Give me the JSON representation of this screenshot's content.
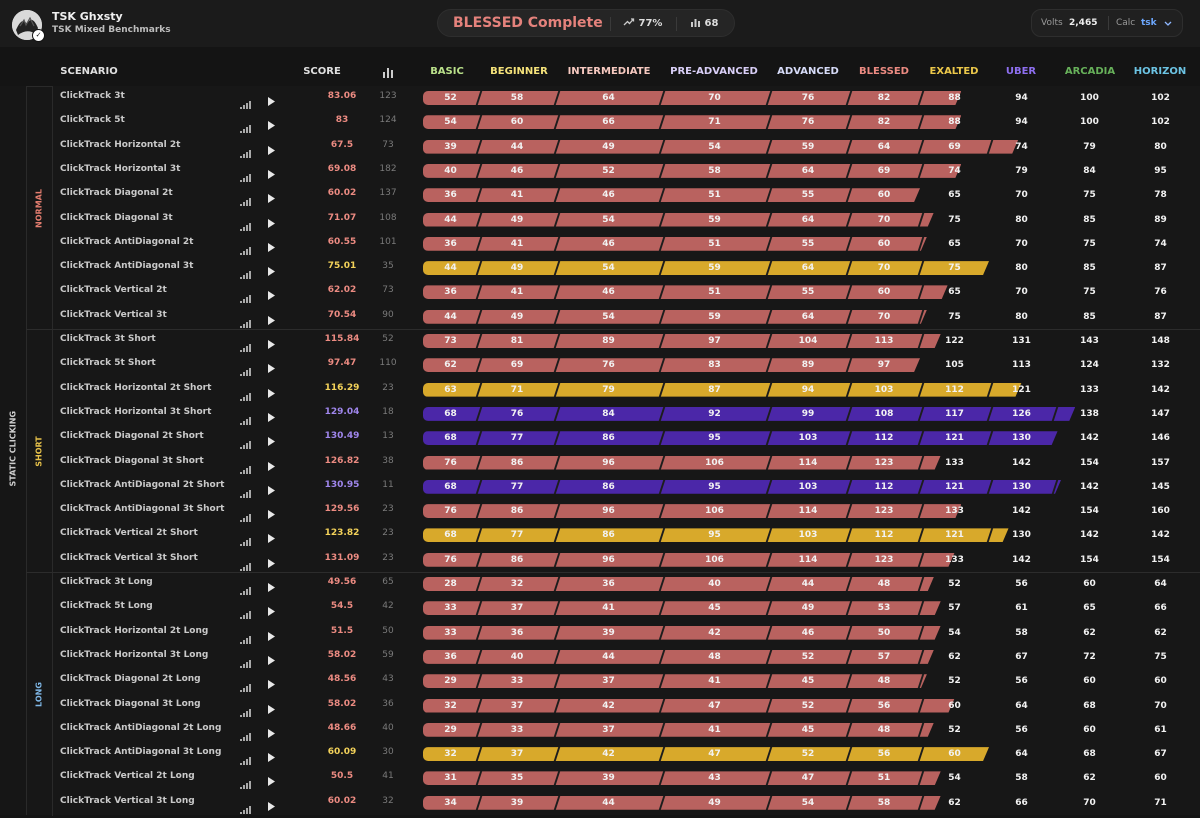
{
  "header": {
    "user_name": "TSK Ghxsty",
    "playlist_name": "TSK Mixed Benchmarks",
    "rank_title": "BLESSED Complete",
    "progress": "77%",
    "count": "68",
    "volts_label": "Volts",
    "volts_value": "2,465",
    "calc_label": "Calc",
    "calc_value": "tsk"
  },
  "columns": {
    "scenario": "SCENARIO",
    "score": "SCORE",
    "ranks": [
      {
        "label": "BASIC",
        "color": "#b9e08a"
      },
      {
        "label": "BEGINNER",
        "color": "#f5e27a"
      },
      {
        "label": "INTERMEDIATE",
        "color": "#f6c9c0"
      },
      {
        "label": "PRE-ADVANCED",
        "color": "#d9cff7"
      },
      {
        "label": "ADVANCED",
        "color": "#d6dbf8"
      },
      {
        "label": "BLESSED",
        "color": "#ec8b82"
      },
      {
        "label": "EXALTED",
        "color": "#ecc84a"
      },
      {
        "label": "UBER",
        "color": "#8e6ff0"
      },
      {
        "label": "ARCADIA",
        "color": "#67b15a"
      },
      {
        "label": "HORIZON",
        "color": "#6cc3e3"
      }
    ]
  },
  "colors": {
    "blessed_bar": "#b9625f",
    "exalted_bar": "#d8a92b",
    "uber_bar": "#4b27a8",
    "score_blessed": "#ec8b82",
    "score_exalted": "#f3d25a",
    "score_uber": "#9f86ec"
  },
  "category": "STATIC CLICKING",
  "sections": [
    {
      "label": "NORMAL",
      "label_color": "#e37d6f",
      "rows": [
        {
          "name": "ClickTrack 3t",
          "score": "83.06",
          "plays": "123",
          "tier": "blessed",
          "fill": 6.6,
          "thresholds": [
            "52",
            "58",
            "64",
            "70",
            "76",
            "82",
            "88",
            "94",
            "100",
            "102"
          ]
        },
        {
          "name": "ClickTrack 5t",
          "score": "83",
          "plays": "124",
          "tier": "blessed",
          "fill": 6.6,
          "thresholds": [
            "54",
            "60",
            "66",
            "71",
            "76",
            "82",
            "88",
            "94",
            "100",
            "102"
          ]
        },
        {
          "name": "ClickTrack Horizontal 2t",
          "score": "67.5",
          "plays": "73",
          "tier": "blessed",
          "fill": 7.45,
          "thresholds": [
            "39",
            "44",
            "49",
            "54",
            "59",
            "64",
            "69",
            "74",
            "79",
            "80"
          ]
        },
        {
          "name": "ClickTrack Horizontal 3t",
          "score": "69.08",
          "plays": "182",
          "tier": "blessed",
          "fill": 6.6,
          "thresholds": [
            "40",
            "46",
            "52",
            "58",
            "64",
            "69",
            "74",
            "79",
            "84",
            "95"
          ]
        },
        {
          "name": "ClickTrack Diagonal 2t",
          "score": "60.02",
          "plays": "137",
          "tier": "blessed",
          "fill": 6.0,
          "thresholds": [
            "36",
            "41",
            "46",
            "51",
            "55",
            "60",
            "65",
            "70",
            "75",
            "78"
          ]
        },
        {
          "name": "ClickTrack Diagonal 3t",
          "score": "71.07",
          "plays": "108",
          "tier": "blessed",
          "fill": 6.2,
          "thresholds": [
            "44",
            "49",
            "54",
            "59",
            "64",
            "70",
            "75",
            "80",
            "85",
            "89"
          ]
        },
        {
          "name": "ClickTrack AntiDiagonal 2t",
          "score": "60.55",
          "plays": "101",
          "tier": "blessed",
          "fill": 6.1,
          "thresholds": [
            "36",
            "41",
            "46",
            "51",
            "55",
            "60",
            "65",
            "70",
            "75",
            "74"
          ]
        },
        {
          "name": "ClickTrack AntiDiagonal 3t",
          "score": "75.01",
          "plays": "35",
          "tier": "exalted",
          "fill": 7.0,
          "thresholds": [
            "44",
            "49",
            "54",
            "59",
            "64",
            "70",
            "75",
            "80",
            "85",
            "87"
          ]
        },
        {
          "name": "ClickTrack Vertical 2t",
          "score": "62.02",
          "plays": "73",
          "tier": "blessed",
          "fill": 6.4,
          "thresholds": [
            "36",
            "41",
            "46",
            "51",
            "55",
            "60",
            "65",
            "70",
            "75",
            "76"
          ]
        },
        {
          "name": "ClickTrack Vertical 3t",
          "score": "70.54",
          "plays": "90",
          "tier": "blessed",
          "fill": 6.1,
          "thresholds": [
            "44",
            "49",
            "54",
            "59",
            "64",
            "70",
            "75",
            "80",
            "85",
            "87"
          ]
        }
      ]
    },
    {
      "label": "SHORT",
      "label_color": "#e7c24a",
      "rows": [
        {
          "name": "ClickTrack 3t Short",
          "score": "115.84",
          "plays": "52",
          "tier": "blessed",
          "fill": 6.3,
          "thresholds": [
            "73",
            "81",
            "89",
            "97",
            "104",
            "113",
            "122",
            "131",
            "143",
            "148"
          ]
        },
        {
          "name": "ClickTrack 5t Short",
          "score": "97.47",
          "plays": "110",
          "tier": "blessed",
          "fill": 6.0,
          "thresholds": [
            "62",
            "69",
            "76",
            "83",
            "89",
            "97",
            "105",
            "113",
            "124",
            "132"
          ]
        },
        {
          "name": "ClickTrack Horizontal 2t Short",
          "score": "116.29",
          "plays": "23",
          "tier": "exalted",
          "fill": 7.5,
          "thresholds": [
            "63",
            "71",
            "79",
            "87",
            "94",
            "103",
            "112",
            "121",
            "133",
            "142"
          ]
        },
        {
          "name": "ClickTrack Horizontal 3t Short",
          "score": "129.04",
          "plays": "18",
          "tier": "uber",
          "fill": 8.3,
          "thresholds": [
            "68",
            "76",
            "84",
            "92",
            "99",
            "108",
            "117",
            "126",
            "138",
            "147"
          ]
        },
        {
          "name": "ClickTrack Diagonal 2t Short",
          "score": "130.49",
          "plays": "13",
          "tier": "uber",
          "fill": 8.05,
          "thresholds": [
            "68",
            "77",
            "86",
            "95",
            "103",
            "112",
            "121",
            "130",
            "142",
            "146"
          ]
        },
        {
          "name": "ClickTrack Diagonal 3t Short",
          "score": "126.82",
          "plays": "38",
          "tier": "blessed",
          "fill": 6.3,
          "thresholds": [
            "76",
            "86",
            "96",
            "106",
            "114",
            "123",
            "133",
            "142",
            "154",
            "157"
          ]
        },
        {
          "name": "ClickTrack AntiDiagonal 2t Short",
          "score": "130.95",
          "plays": "11",
          "tier": "uber",
          "fill": 8.1,
          "thresholds": [
            "68",
            "77",
            "86",
            "95",
            "103",
            "112",
            "121",
            "130",
            "142",
            "145"
          ]
        },
        {
          "name": "ClickTrack AntiDiagonal 3t Short",
          "score": "129.56",
          "plays": "23",
          "tier": "blessed",
          "fill": 6.6,
          "thresholds": [
            "76",
            "86",
            "96",
            "106",
            "114",
            "123",
            "133",
            "142",
            "154",
            "160"
          ]
        },
        {
          "name": "ClickTrack Vertical 2t Short",
          "score": "123.82",
          "plays": "23",
          "tier": "exalted",
          "fill": 7.3,
          "thresholds": [
            "68",
            "77",
            "86",
            "95",
            "103",
            "112",
            "121",
            "130",
            "142",
            "142"
          ]
        },
        {
          "name": "ClickTrack Vertical 3t Short",
          "score": "131.09",
          "plays": "23",
          "tier": "blessed",
          "fill": 6.5,
          "thresholds": [
            "76",
            "86",
            "96",
            "106",
            "114",
            "123",
            "133",
            "142",
            "154",
            "154"
          ]
        }
      ]
    },
    {
      "label": "LONG",
      "label_color": "#7fb7e6",
      "rows": [
        {
          "name": "ClickTrack 3t Long",
          "score": "49.56",
          "plays": "65",
          "tier": "blessed",
          "fill": 6.2,
          "thresholds": [
            "28",
            "32",
            "36",
            "40",
            "44",
            "48",
            "52",
            "56",
            "60",
            "64"
          ]
        },
        {
          "name": "ClickTrack 5t Long",
          "score": "54.5",
          "plays": "42",
          "tier": "blessed",
          "fill": 6.3,
          "thresholds": [
            "33",
            "37",
            "41",
            "45",
            "49",
            "53",
            "57",
            "61",
            "65",
            "66"
          ]
        },
        {
          "name": "ClickTrack Horizontal 2t Long",
          "score": "51.5",
          "plays": "50",
          "tier": "blessed",
          "fill": 6.3,
          "thresholds": [
            "33",
            "36",
            "39",
            "42",
            "46",
            "50",
            "54",
            "58",
            "62",
            "62"
          ]
        },
        {
          "name": "ClickTrack Horizontal 3t Long",
          "score": "58.02",
          "plays": "59",
          "tier": "blessed",
          "fill": 6.2,
          "thresholds": [
            "36",
            "40",
            "44",
            "48",
            "52",
            "57",
            "62",
            "67",
            "72",
            "75"
          ]
        },
        {
          "name": "ClickTrack Diagonal 2t Long",
          "score": "48.56",
          "plays": "43",
          "tier": "blessed",
          "fill": 6.1,
          "thresholds": [
            "29",
            "33",
            "37",
            "41",
            "45",
            "48",
            "52",
            "56",
            "60",
            "60"
          ]
        },
        {
          "name": "ClickTrack Diagonal 3t Long",
          "score": "58.02",
          "plays": "36",
          "tier": "blessed",
          "fill": 6.5,
          "thresholds": [
            "32",
            "37",
            "42",
            "47",
            "52",
            "56",
            "60",
            "64",
            "68",
            "70"
          ]
        },
        {
          "name": "ClickTrack AntiDiagonal 2t Long",
          "score": "48.66",
          "plays": "40",
          "tier": "blessed",
          "fill": 6.2,
          "thresholds": [
            "29",
            "33",
            "37",
            "41",
            "45",
            "48",
            "52",
            "56",
            "60",
            "61"
          ]
        },
        {
          "name": "ClickTrack AntiDiagonal 3t Long",
          "score": "60.09",
          "plays": "30",
          "tier": "exalted",
          "fill": 7.0,
          "thresholds": [
            "32",
            "37",
            "42",
            "47",
            "52",
            "56",
            "60",
            "64",
            "68",
            "67"
          ]
        },
        {
          "name": "ClickTrack Vertical 2t Long",
          "score": "50.5",
          "plays": "41",
          "tier": "blessed",
          "fill": 6.3,
          "thresholds": [
            "31",
            "35",
            "39",
            "43",
            "47",
            "51",
            "54",
            "58",
            "62",
            "60"
          ]
        },
        {
          "name": "ClickTrack Vertical 3t Long",
          "score": "60.02",
          "plays": "32",
          "tier": "blessed",
          "fill": 6.3,
          "thresholds": [
            "34",
            "39",
            "44",
            "49",
            "54",
            "58",
            "62",
            "66",
            "70",
            "71"
          ]
        }
      ]
    }
  ]
}
